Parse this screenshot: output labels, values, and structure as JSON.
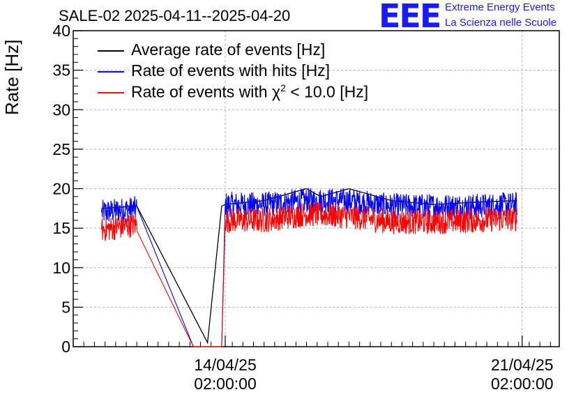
{
  "page": {
    "title": "SALE-02 2025-04-11--2025-04-20",
    "logo": {
      "letters": "EEE",
      "line1": "Extreme Energy Events",
      "line2": "La Scienza nelle Scuole",
      "color": "#1a1aff"
    }
  },
  "chart_data": {
    "type": "line",
    "title": "SALE-02 2025-04-11--2025-04-20",
    "xlabel": "",
    "ylabel": "Rate [Hz]",
    "ylim": [
      0,
      40
    ],
    "yticks": [
      0,
      5,
      10,
      15,
      20,
      25,
      30,
      35,
      40
    ],
    "xlim": [
      "2025-04-10 12:00",
      "2025-04-21 23:00"
    ],
    "xticks": [
      {
        "x": "2025-04-14 02:00",
        "line1": "14/04/25",
        "line2": "02:00:00"
      },
      {
        "x": "2025-04-21 02:00",
        "line1": "21/04/25",
        "line2": "02:00:00"
      }
    ],
    "grid": true,
    "legend": "top-left",
    "series": [
      {
        "name": "Average rate of events [Hz]",
        "color": "#000000",
        "x": [
          "2025-04-11 04:00",
          "2025-04-12 00:00",
          "2025-04-13 16:00",
          "2025-04-14 00:00",
          "2025-04-14 02:00",
          "2025-04-15 00:00",
          "2025-04-16 00:00",
          "2025-04-16 08:00",
          "2025-04-17 00:00",
          "2025-04-18 00:00",
          "2025-04-19 00:00",
          "2025-04-20 00:00",
          "2025-04-20 23:00"
        ],
        "y": [
          17.5,
          17.8,
          0.5,
          17.8,
          18.0,
          18.5,
          20.0,
          19.0,
          20.0,
          18.5,
          18.0,
          18.3,
          18.5
        ]
      },
      {
        "name": "Rate of events with hits [Hz]",
        "color": "#0000ff",
        "x": [
          "2025-04-11 04:00",
          "2025-04-12 00:00",
          "2025-04-13 08:00",
          "2025-04-14 00:00",
          "2025-04-14 02:00",
          "2025-04-15 00:00",
          "2025-04-16 00:00",
          "2025-04-17 00:00",
          "2025-04-18 00:00",
          "2025-04-19 00:00",
          "2025-04-20 00:00",
          "2025-04-20 23:00"
        ],
        "y": [
          17.0,
          17.5,
          0,
          0,
          18.0,
          18.0,
          18.5,
          18.5,
          17.8,
          17.8,
          17.8,
          18.0
        ]
      },
      {
        "name": "Rate of events with χ² < 10.0 [Hz]",
        "color": "#ff0000",
        "x": [
          "2025-04-11 04:00",
          "2025-04-12 00:00",
          "2025-04-13 08:00",
          "2025-04-14 00:00",
          "2025-04-14 02:00",
          "2025-04-15 00:00",
          "2025-04-16 00:00",
          "2025-04-17 00:00",
          "2025-04-18 00:00",
          "2025-04-19 00:00",
          "2025-04-20 00:00",
          "2025-04-20 23:00"
        ],
        "y": [
          14.8,
          15.5,
          0,
          0,
          16.0,
          16.0,
          16.8,
          16.5,
          15.8,
          15.8,
          16.0,
          16.2
        ]
      }
    ],
    "legend_entries": [
      {
        "label": "Average rate of events [Hz]",
        "color": "#000000"
      },
      {
        "label": "Rate of events with hits [Hz]",
        "color": "#0000ff"
      },
      {
        "label_prefix": "Rate of events with χ",
        "label_sup": "2",
        "label_suffix": " < 10.0 [Hz]",
        "color": "#ff0000"
      }
    ]
  }
}
